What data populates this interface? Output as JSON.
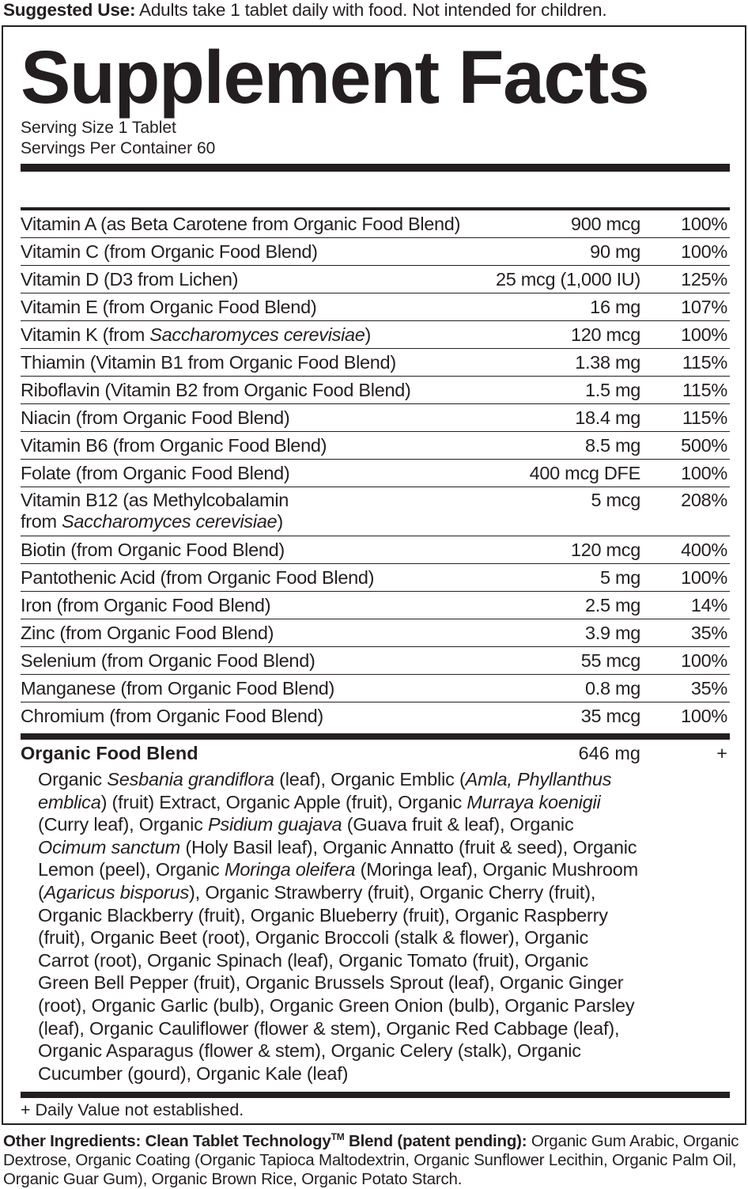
{
  "suggested_use": {
    "label": "Suggested Use:",
    "text": " Adults take 1 tablet daily with food. Not intended for children."
  },
  "title": "Supplement Facts",
  "serving_size": "Serving Size 1 Tablet",
  "servings_per_container": "Servings Per Container 60",
  "nutrients": [
    {
      "name": [
        {
          "t": "Vitamin A (as Beta Carotene from Organic Food Blend)"
        }
      ],
      "amount": "900 mcg",
      "dv": "100%"
    },
    {
      "name": [
        {
          "t": "Vitamin C (from Organic Food Blend)"
        }
      ],
      "amount": "90 mg",
      "dv": "100%"
    },
    {
      "name": [
        {
          "t": "Vitamin D (D3 from Lichen)"
        }
      ],
      "amount": "25 mcg (1,000 IU)",
      "dv": "125%"
    },
    {
      "name": [
        {
          "t": "Vitamin E (from Organic Food Blend)"
        }
      ],
      "amount": "16 mg",
      "dv": "107%"
    },
    {
      "name": [
        {
          "t": "Vitamin K (from "
        },
        {
          "t": "Saccharomyces cerevisiae",
          "i": true
        },
        {
          "t": ")"
        }
      ],
      "amount": "120 mcg",
      "dv": "100%"
    },
    {
      "name": [
        {
          "t": "Thiamin (Vitamin B1 from Organic Food Blend)"
        }
      ],
      "amount": "1.38 mg",
      "dv": "115%"
    },
    {
      "name": [
        {
          "t": "Riboflavin (Vitamin B2 from Organic Food Blend)"
        }
      ],
      "amount": "1.5 mg",
      "dv": "115%"
    },
    {
      "name": [
        {
          "t": "Niacin (from Organic Food Blend)"
        }
      ],
      "amount": "18.4 mg",
      "dv": "115%"
    },
    {
      "name": [
        {
          "t": "Vitamin B6 (from Organic Food Blend)"
        }
      ],
      "amount": "8.5 mg",
      "dv": "500%"
    },
    {
      "name": [
        {
          "t": "Folate (from Organic Food Blend)"
        }
      ],
      "amount": "400 mcg DFE",
      "dv": "100%"
    },
    {
      "name": [
        {
          "t": "Vitamin B12 (as Methylcobalamin"
        },
        {
          "br": true
        },
        {
          "t": "from "
        },
        {
          "t": "Saccharomyces cerevisiae",
          "i": true
        },
        {
          "t": ")"
        }
      ],
      "amount": "5 mcg",
      "dv": "208%"
    },
    {
      "name": [
        {
          "t": "Biotin (from Organic Food Blend)"
        }
      ],
      "amount": "120 mcg",
      "dv": "400%"
    },
    {
      "name": [
        {
          "t": "Pantothenic Acid (from Organic Food Blend)"
        }
      ],
      "amount": "5 mg",
      "dv": "100%"
    },
    {
      "name": [
        {
          "t": "Iron (from Organic Food Blend)"
        }
      ],
      "amount": "2.5 mg",
      "dv": "14%"
    },
    {
      "name": [
        {
          "t": "Zinc (from Organic Food Blend)"
        }
      ],
      "amount": "3.9 mg",
      "dv": "35%"
    },
    {
      "name": [
        {
          "t": "Selenium (from Organic Food Blend)"
        }
      ],
      "amount": "55 mcg",
      "dv": "100%"
    },
    {
      "name": [
        {
          "t": "Manganese (from Organic Food Blend)"
        }
      ],
      "amount": "0.8 mg",
      "dv": "35%"
    },
    {
      "name": [
        {
          "t": "Chromium (from Organic Food Blend)"
        }
      ],
      "amount": "35 mcg",
      "dv": "100%"
    }
  ],
  "blend": {
    "name": "Organic Food Blend",
    "amount": "646 mg",
    "dv": "+",
    "lines": [
      [
        {
          "t": "Organic "
        },
        {
          "t": "Sesbania grandiflora",
          "i": true
        },
        {
          "t": " (leaf), Organic Emblic ("
        },
        {
          "t": "Amla, Phyllanthus",
          "i": true
        }
      ],
      [
        {
          "t": "emblica",
          "i": true
        },
        {
          "t": ") (fruit) Extract, Organic Apple (fruit), Organic "
        },
        {
          "t": "Murraya koenigii",
          "i": true
        }
      ],
      [
        {
          "t": "(Curry leaf), Organic "
        },
        {
          "t": "Psidium guajava",
          "i": true
        },
        {
          "t": " (Guava fruit & leaf), Organic"
        }
      ],
      [
        {
          "t": "Ocimum sanctum",
          "i": true
        },
        {
          "t": " (Holy Basil leaf), Organic Annatto (fruit & seed), Organic"
        }
      ],
      [
        {
          "t": "Lemon (peel), Organic "
        },
        {
          "t": "Moringa oleifera",
          "i": true
        },
        {
          "t": " (Moringa leaf), Organic Mushroom"
        }
      ],
      [
        {
          "t": "("
        },
        {
          "t": "Agaricus bisporus",
          "i": true
        },
        {
          "t": "), Organic Strawberry (fruit), Organic Cherry (fruit),"
        }
      ],
      [
        {
          "t": "Organic Blackberry (fruit), Organic Blueberry (fruit), Organic Raspberry"
        }
      ],
      [
        {
          "t": "(fruit), Organic Beet (root), Organic Broccoli (stalk & flower), Organic"
        }
      ],
      [
        {
          "t": "Carrot (root), Organic Spinach (leaf), Organic Tomato (fruit), Organic"
        }
      ],
      [
        {
          "t": "Green Bell Pepper (fruit), Organic Brussels Sprout (leaf), Organic Ginger"
        }
      ],
      [
        {
          "t": "(root), Organic Garlic (bulb), Organic Green Onion (bulb), Organic Parsley"
        }
      ],
      [
        {
          "t": "(leaf), Organic Cauliflower (flower & stem), Organic Red Cabbage (leaf),"
        }
      ],
      [
        {
          "t": "Organic Asparagus (flower & stem), Organic Celery (stalk), Organic"
        }
      ],
      [
        {
          "t": "Cucumber (gourd), Organic Kale (leaf)"
        }
      ]
    ]
  },
  "footnote": "+ Daily Value not established.",
  "other_ingredients": {
    "label": "Other Ingredients: Clean Tablet Technology",
    "tm": "TM",
    "label_rest": " Blend (patent pending):",
    "text": " Organic Gum Arabic, Organic Dextrose, Organic Coating (Organic Tapioca Maltodextrin, Organic Sunflower Lecithin, Organic Palm Oil, Organic Guar Gum), Organic Brown Rice, Organic Potato Starch."
  }
}
